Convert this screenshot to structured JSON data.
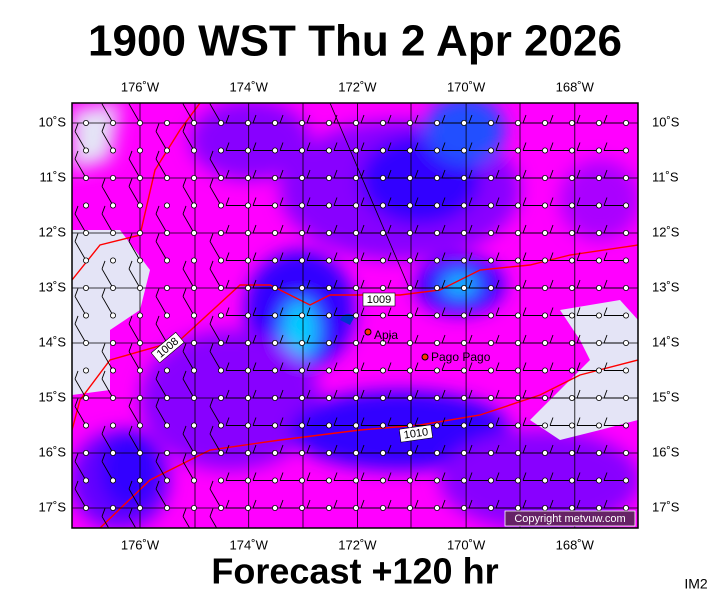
{
  "header": {
    "title": "1900 WST Thu 2 Apr 2026"
  },
  "map": {
    "lon_labels": [
      "176˚W",
      "174˚W",
      "172˚W",
      "170˚W",
      "168˚W"
    ],
    "lat_labels": [
      "10˚S",
      "11˚S",
      "12˚S",
      "13˚S",
      "14˚S",
      "15˚S",
      "16˚S",
      "17˚S"
    ],
    "places": [
      "Apia",
      "Pago Pago"
    ],
    "isobars": [
      "1009",
      "1008",
      "1010"
    ],
    "copyright": "Copyright metvuw.com"
  },
  "footer": {
    "forecast": "Forecast +120 hr",
    "code": "IM2"
  }
}
